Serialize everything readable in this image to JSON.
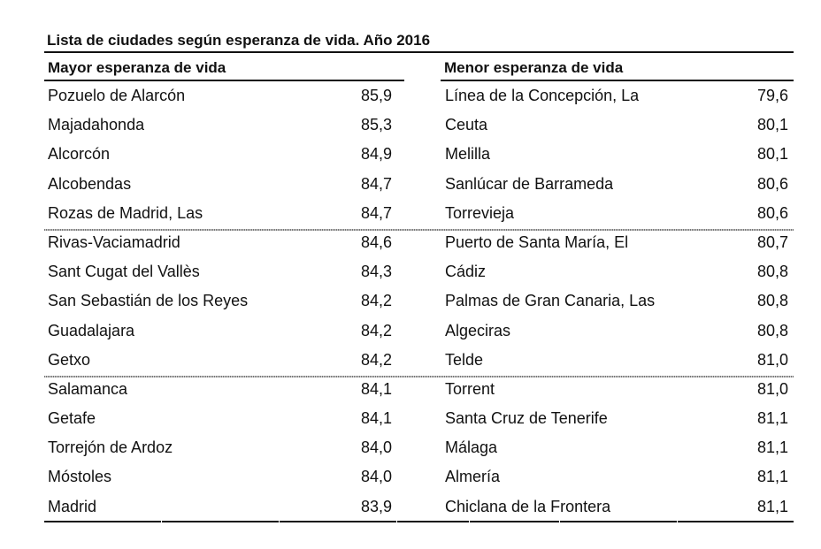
{
  "title": "Lista de ciudades según esperanza de vida. Año 2016",
  "left": {
    "header": "Mayor esperanza de vida",
    "rows": [
      {
        "city": "Pozuelo de Alarcón",
        "value": "85,9"
      },
      {
        "city": "Majadahonda",
        "value": "85,3"
      },
      {
        "city": "Alcorcón",
        "value": "84,9"
      },
      {
        "city": "Alcobendas",
        "value": "84,7"
      },
      {
        "city": "Rozas de Madrid, Las",
        "value": "84,7"
      },
      {
        "city": "Rivas-Vaciamadrid",
        "value": "84,6"
      },
      {
        "city": "Sant Cugat del Vallès",
        "value": "84,3"
      },
      {
        "city": "San Sebastián de los Reyes",
        "value": "84,2"
      },
      {
        "city": "Guadalajara",
        "value": "84,2"
      },
      {
        "city": "Getxo",
        "value": "84,2"
      },
      {
        "city": "Salamanca",
        "value": "84,1"
      },
      {
        "city": "Getafe",
        "value": "84,1"
      },
      {
        "city": "Torrejón de Ardoz",
        "value": "84,0"
      },
      {
        "city": "Móstoles",
        "value": "84,0"
      },
      {
        "city": "Madrid",
        "value": "83,9"
      }
    ]
  },
  "right": {
    "header": "Menor esperanza de vida",
    "rows": [
      {
        "city": "Línea de la Concepción, La",
        "value": "79,6"
      },
      {
        "city": "Ceuta",
        "value": "80,1"
      },
      {
        "city": "Melilla",
        "value": "80,1"
      },
      {
        "city": "Sanlúcar de Barrameda",
        "value": "80,6"
      },
      {
        "city": "Torrevieja",
        "value": "80,6"
      },
      {
        "city": "Puerto de Santa María, El",
        "value": "80,7"
      },
      {
        "city": "Cádiz",
        "value": "80,8"
      },
      {
        "city": "Palmas de Gran Canaria, Las",
        "value": "80,8"
      },
      {
        "city": "Algeciras",
        "value": "80,8"
      },
      {
        "city": "Telde",
        "value": "81,0"
      },
      {
        "city": "Torrent",
        "value": "81,0"
      },
      {
        "city": "Santa Cruz de Tenerife",
        "value": "81,1"
      },
      {
        "city": "Málaga",
        "value": "81,1"
      },
      {
        "city": "Almería",
        "value": "81,1"
      },
      {
        "city": "Chiclana de la Frontera",
        "value": "81,1"
      }
    ]
  }
}
